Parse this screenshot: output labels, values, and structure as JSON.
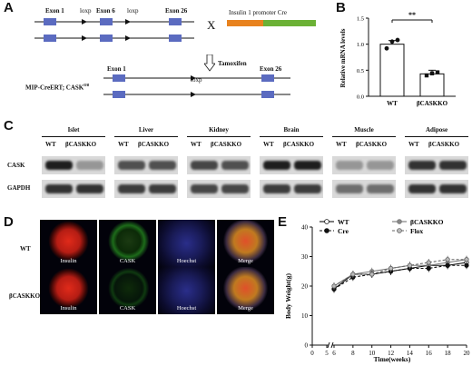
{
  "panels": {
    "a": "A",
    "b": "B",
    "c": "C",
    "d": "D",
    "e": "E"
  },
  "panelA": {
    "exon1": "Exon 1",
    "loxp1": "loxp",
    "exon6": "Exon 6",
    "loxp2": "loxp",
    "exon26": "Exon 26",
    "cross": "X",
    "promoter": "Insulin 1 promoter Cre",
    "tamoxifen": "Tamoxifen",
    "genotype": "MIP-CreERT; CASK",
    "exon1b": "Exon 1",
    "loxp3": "loxp",
    "exon26b": "Exon 26"
  },
  "panelB": {
    "chart_data": {
      "type": "bar",
      "categories": [
        "WT",
        "βCASKKO"
      ],
      "values": [
        1.0,
        0.43
      ],
      "ylabel": "Relative mRNA levels",
      "ylim": [
        0,
        1.5
      ],
      "yticks": [
        "0.0",
        "0.5",
        "1.0",
        "1.5"
      ],
      "significance": "**"
    }
  },
  "panelC": {
    "tissues": [
      "Islet",
      "Liver",
      "Kidney",
      "Brain",
      "Muscle",
      "Adipose"
    ],
    "wt": "WT",
    "ko": "βCASKKO",
    "rows": [
      "CASK",
      "GAPDH"
    ]
  },
  "panelD": {
    "rows": [
      "WT",
      "βCASKKO"
    ],
    "cols": [
      "Insulin",
      "CASK",
      "Hoechst",
      "Merge"
    ]
  },
  "panelE": {
    "chart_data": {
      "type": "line",
      "x": [
        6,
        8,
        10,
        12,
        14,
        16,
        18,
        20
      ],
      "xlabel": "Time(weeks)",
      "ylabel": "Body Weight(g)",
      "xlim": [
        0,
        20
      ],
      "ylim": [
        0,
        40
      ],
      "xticks": [
        "0",
        "5",
        "6",
        "8",
        "10",
        "12",
        "14",
        "16",
        "18",
        "20"
      ],
      "yticks": [
        "0",
        "10",
        "20",
        "30",
        "40"
      ],
      "series": [
        {
          "name": "WT",
          "values": [
            19,
            24,
            24,
            25,
            26,
            27,
            27,
            28
          ]
        },
        {
          "name": "βCASKKO",
          "values": [
            20,
            24,
            25,
            26,
            27,
            27,
            28,
            29
          ]
        },
        {
          "name": "Cre",
          "values": [
            19,
            23,
            24,
            25,
            26,
            26,
            27,
            27
          ]
        },
        {
          "name": "Flox",
          "values": [
            20,
            24,
            24,
            26,
            27,
            28,
            29,
            29
          ]
        }
      ]
    }
  }
}
